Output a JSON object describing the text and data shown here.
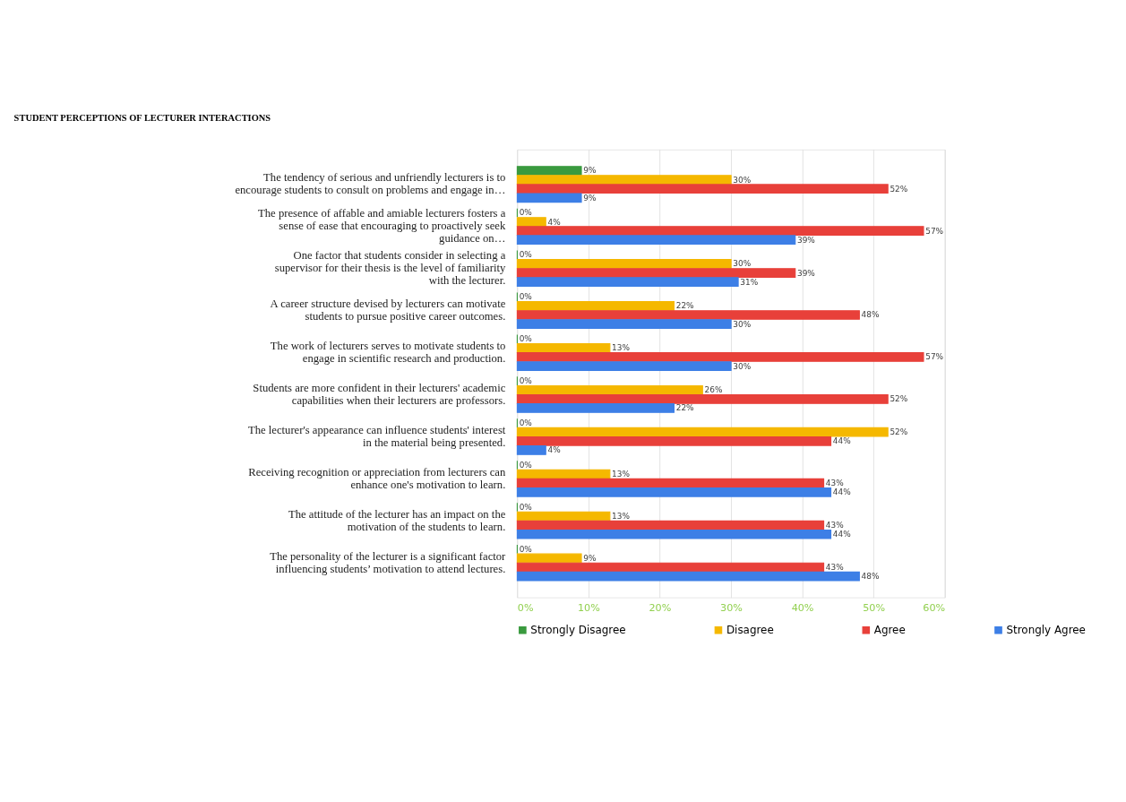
{
  "chart_data": {
    "type": "bar",
    "orientation": "horizontal",
    "title": "STUDENT PERCEPTIONS OF LECTURER INTERACTIONS",
    "categories": [
      "The tendency of serious and unfriendly lecturers is to encourage students to consult on problems and engage in…",
      "The presence of affable and amiable lecturers fosters a sense of ease that encouraging to proactively seek guidance on…",
      "One factor that students consider in selecting a supervisor for their thesis is the level of familiarity with the lecturer.",
      "A career structure devised by lecturers can motivate students to pursue positive career outcomes.",
      "The work of lecturers serves to motivate students to engage in scientific research and production.",
      "Students are more confident in their lecturers' academic capabilities when their lecturers are professors.",
      "The lecturer's appearance can influence students' interest in the material being presented.",
      "Receiving recognition or appreciation from lecturers can enhance one's motivation to learn.",
      "The attitude of the lecturer has an impact on the motivation of the students to learn.",
      "The personality of the lecturer is a significant factor influencing students’ motivation to attend lectures."
    ],
    "series": [
      {
        "name": "Strongly Disagree",
        "color": "#3a9a3f",
        "values": [
          9,
          0,
          0,
          0,
          0,
          0,
          0,
          0,
          0,
          0
        ],
        "value_labels": [
          "9%",
          "0%",
          "0%",
          "0%",
          "0%",
          "0%",
          "0%",
          "0%",
          "0%",
          "0%"
        ]
      },
      {
        "name": "Disagree",
        "color": "#f5b800",
        "values": [
          30,
          4,
          30,
          22,
          13,
          26,
          52,
          13,
          13,
          9
        ],
        "value_labels": [
          "30%",
          "4%",
          "30%",
          "22%",
          "13%",
          "26%",
          "52%",
          "13%",
          "13%",
          "9%"
        ]
      },
      {
        "name": "Agree",
        "color": "#e8403a",
        "values": [
          52,
          57,
          39,
          48,
          57,
          52,
          44,
          43,
          43,
          43
        ],
        "value_labels": [
          "52%",
          "57%",
          "39%",
          "48%",
          "57%",
          "52%",
          "44%",
          "43%",
          "43%",
          "43%"
        ]
      },
      {
        "name": "Strongly Agree",
        "color": "#3d7fe6",
        "values": [
          9,
          39,
          31,
          30,
          30,
          22,
          4,
          44,
          44,
          48
        ],
        "value_labels": [
          "9%",
          "39%",
          "31%",
          "30%",
          "30%",
          "22%",
          "4%",
          "44%",
          "44%",
          "48%"
        ]
      }
    ],
    "xlim": [
      0,
      60
    ],
    "xticks": [
      {
        "value": 0,
        "label": "0%"
      },
      {
        "value": 10,
        "label": "10%"
      },
      {
        "value": 20,
        "label": "20%"
      },
      {
        "value": 30,
        "label": "30%"
      },
      {
        "value": 40,
        "label": "40%"
      },
      {
        "value": 50,
        "label": "50%"
      },
      {
        "value": 60,
        "label": "60%"
      }
    ],
    "grid": "x",
    "legend": "bottom"
  }
}
